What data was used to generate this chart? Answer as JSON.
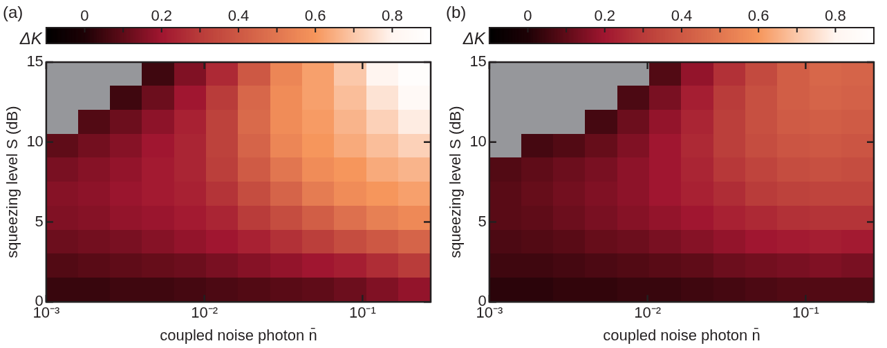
{
  "chart_data": [
    {
      "type": "heatmap",
      "title": "(a)",
      "xlabel": "coupled noise photon n̄",
      "ylabel": "squeezing level S (dB)",
      "clabel": "ΔK",
      "log": "x",
      "xlim": [
        0.001,
        0.27
      ],
      "xticks": [
        {
          "value": 0.001,
          "label": "10⁻³"
        },
        {
          "value": 0.01,
          "label": "10⁻²"
        },
        {
          "value": 0.1,
          "label": "10⁻¹"
        }
      ],
      "ylim": [
        0,
        15
      ],
      "yticks": [
        0,
        5,
        10,
        15
      ],
      "clim": [
        -0.1,
        0.9
      ],
      "cticks": [
        {
          "value": -0.1,
          "label": null
        },
        0,
        {
          "value": 0.1,
          "label": null
        },
        0.2,
        {
          "value": 0.3,
          "label": null
        },
        0.4,
        {
          "value": 0.5,
          "label": null
        },
        0.6,
        {
          "value": 0.7,
          "label": null
        },
        0.8
      ],
      "cells": [
        [
          null,
          null,
          null,
          0.05,
          0.15,
          0.25,
          0.4,
          0.55,
          0.62,
          0.7,
          0.8,
          0.88
        ],
        [
          null,
          null,
          0.05,
          0.12,
          0.2,
          0.3,
          0.45,
          0.57,
          0.62,
          0.68,
          0.76,
          0.84
        ],
        [
          null,
          0.08,
          0.12,
          0.17,
          0.23,
          0.32,
          0.46,
          0.57,
          0.61,
          0.66,
          0.72,
          0.78
        ],
        [
          0.1,
          0.13,
          0.16,
          0.2,
          0.24,
          0.32,
          0.44,
          0.55,
          0.6,
          0.64,
          0.68,
          0.72
        ],
        [
          0.14,
          0.16,
          0.18,
          0.21,
          0.24,
          0.31,
          0.41,
          0.5,
          0.57,
          0.6,
          0.64,
          0.66
        ],
        [
          0.16,
          0.17,
          0.19,
          0.21,
          0.23,
          0.28,
          0.36,
          0.44,
          0.52,
          0.57,
          0.6,
          0.62
        ],
        [
          0.15,
          0.16,
          0.18,
          0.19,
          0.21,
          0.24,
          0.3,
          0.36,
          0.42,
          0.48,
          0.53,
          0.56
        ],
        [
          0.12,
          0.13,
          0.14,
          0.16,
          0.18,
          0.2,
          0.23,
          0.27,
          0.31,
          0.36,
          0.4,
          0.44
        ],
        [
          0.08,
          0.09,
          0.1,
          0.11,
          0.12,
          0.14,
          0.16,
          0.18,
          0.2,
          0.22,
          0.26,
          0.3
        ],
        [
          0.04,
          0.04,
          0.05,
          0.05,
          0.06,
          0.07,
          0.08,
          0.09,
          0.1,
          0.12,
          0.15,
          0.18
        ]
      ]
    },
    {
      "type": "heatmap",
      "title": "(b)",
      "xlabel": "coupled noise photon n̄",
      "ylabel": "squeezing level S (dB)",
      "clabel": "ΔK",
      "log": "x",
      "xlim": [
        0.001,
        0.27
      ],
      "xticks": [
        {
          "value": 0.001,
          "label": "10⁻³"
        },
        {
          "value": 0.01,
          "label": "10⁻²"
        },
        {
          "value": 0.1,
          "label": "10⁻¹"
        }
      ],
      "ylim": [
        0,
        15
      ],
      "yticks": [
        0,
        5,
        10,
        15
      ],
      "clim": [
        -0.1,
        0.9
      ],
      "cticks": [
        {
          "value": -0.1,
          "label": null
        },
        0,
        {
          "value": 0.1,
          "label": null
        },
        0.2,
        {
          "value": 0.3,
          "label": null
        },
        0.4,
        {
          "value": 0.5,
          "label": null
        },
        0.6,
        {
          "value": 0.7,
          "label": null
        },
        0.8
      ],
      "cells": [
        [
          null,
          null,
          null,
          null,
          null,
          0.08,
          0.18,
          0.27,
          0.35,
          0.42,
          0.45,
          0.44
        ],
        [
          null,
          null,
          null,
          null,
          0.07,
          0.14,
          0.22,
          0.3,
          0.37,
          0.42,
          0.44,
          0.43
        ],
        [
          null,
          null,
          null,
          0.06,
          0.12,
          0.18,
          0.24,
          0.31,
          0.37,
          0.41,
          0.42,
          0.41
        ],
        [
          null,
          0.06,
          0.08,
          0.11,
          0.15,
          0.2,
          0.25,
          0.31,
          0.36,
          0.39,
          0.4,
          0.39
        ],
        [
          0.08,
          0.1,
          0.12,
          0.14,
          0.17,
          0.2,
          0.24,
          0.29,
          0.33,
          0.36,
          0.37,
          0.36
        ],
        [
          0.09,
          0.11,
          0.13,
          0.15,
          0.17,
          0.2,
          0.23,
          0.26,
          0.3,
          0.32,
          0.33,
          0.33
        ],
        [
          0.09,
          0.1,
          0.12,
          0.14,
          0.16,
          0.18,
          0.2,
          0.23,
          0.25,
          0.27,
          0.28,
          0.28
        ],
        [
          0.07,
          0.08,
          0.09,
          0.11,
          0.12,
          0.14,
          0.16,
          0.18,
          0.2,
          0.21,
          0.22,
          0.21
        ],
        [
          0.05,
          0.05,
          0.06,
          0.07,
          0.08,
          0.09,
          0.1,
          0.12,
          0.13,
          0.14,
          0.15,
          0.14
        ],
        [
          0.02,
          0.02,
          0.03,
          0.03,
          0.04,
          0.04,
          0.05,
          0.06,
          0.07,
          0.08,
          0.08,
          0.08
        ]
      ]
    }
  ]
}
